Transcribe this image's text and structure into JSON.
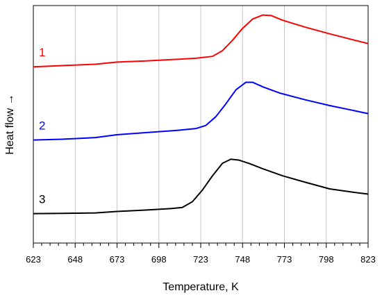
{
  "chart_data": {
    "type": "line",
    "title": "",
    "xlabel": "Temperature, K",
    "ylabel": "Heat flow →",
    "xlim": [
      623,
      823
    ],
    "x_ticks": [
      623,
      648,
      673,
      698,
      723,
      748,
      773,
      798,
      823
    ],
    "grid": "vertical",
    "grid_color": "#c8c8c8",
    "legend": "none",
    "y_ticks_shown": false,
    "ylim": [
      0,
      100
    ],
    "series": [
      {
        "name": "1",
        "color": "#ff0000",
        "x": [
          623,
          640,
          660,
          673,
          690,
          710,
          720,
          730,
          736,
          742,
          748,
          754,
          760,
          765,
          772,
          785,
          800,
          815,
          823
        ],
        "y": [
          74.2,
          74.7,
          75.3,
          76.2,
          76.7,
          77.4,
          77.8,
          78.6,
          81.0,
          85.4,
          90.4,
          94.3,
          96.0,
          95.8,
          93.8,
          91.0,
          88.1,
          85.4,
          84.0
        ]
      },
      {
        "name": "2",
        "color": "#0000ff",
        "x": [
          623,
          640,
          660,
          673,
          690,
          710,
          720,
          726,
          732,
          738,
          744,
          750,
          754,
          760,
          770,
          785,
          800,
          815,
          823
        ],
        "y": [
          43.4,
          43.7,
          44.4,
          45.6,
          46.5,
          47.5,
          48.2,
          49.5,
          53.2,
          58.6,
          64.5,
          67.7,
          67.7,
          65.8,
          63.2,
          60.4,
          57.9,
          55.7,
          54.5
        ]
      },
      {
        "name": "3",
        "color": "#000000",
        "x": [
          623,
          640,
          660,
          673,
          690,
          705,
          712,
          718,
          724,
          730,
          736,
          741,
          746,
          752,
          760,
          772,
          785,
          800,
          815,
          823
        ],
        "y": [
          12.4,
          12.5,
          12.7,
          13.3,
          13.9,
          14.5,
          15.0,
          17.4,
          22.3,
          28.3,
          33.6,
          35.3,
          34.9,
          33.5,
          31.3,
          28.3,
          25.7,
          22.8,
          21.3,
          20.6
        ]
      }
    ]
  }
}
